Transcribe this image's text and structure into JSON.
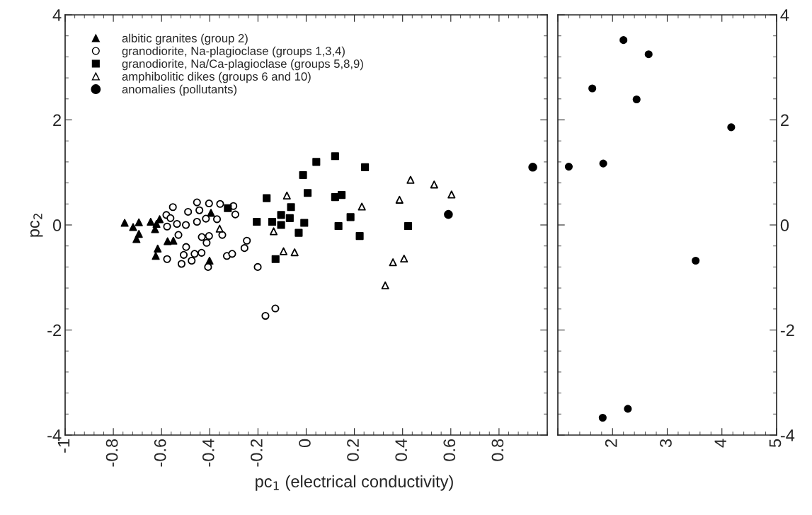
{
  "chart_data": [
    {
      "type": "scatter",
      "xlabel": "pc$_{1}$ (electrical conductivity)",
      "ylabel": "pc$_{2}$",
      "xlim": [
        -1,
        1
      ],
      "xticks": [
        -1,
        -0.8,
        -0.6,
        -0.4,
        -0.2,
        0,
        0.2,
        0.4,
        0.6,
        0.8
      ],
      "ylim": [
        -4,
        4
      ],
      "yticks": [
        -4,
        -2,
        0,
        2,
        4
      ],
      "legend": "top left",
      "series": [
        {
          "name": "albitic granites (group 2)",
          "marker": "triangle",
          "color": "#000000",
          "x": [
            -0.753,
            -0.718,
            -0.694,
            -0.694,
            -0.704,
            -0.645,
            -0.608,
            -0.621,
            -0.627,
            -0.575,
            -0.551,
            -0.616,
            -0.624,
            -0.395,
            -0.401
          ],
          "values": [
            0.04,
            -0.04,
            0.05,
            -0.17,
            -0.27,
            0.06,
            0.11,
            0.02,
            -0.08,
            -0.31,
            -0.3,
            -0.45,
            -0.59,
            0.23,
            -0.68
          ]
        },
        {
          "name": "granodiorite, Na-plagioclase (groups 1,3,4)",
          "marker": "circle",
          "color": "#ffffff",
          "x": [
            -0.553,
            -0.58,
            -0.563,
            -0.577,
            -0.536,
            -0.499,
            -0.49,
            -0.453,
            -0.443,
            -0.403,
            -0.357,
            -0.302,
            -0.294,
            -0.453,
            -0.416,
            -0.37,
            -0.53,
            -0.433,
            -0.403,
            -0.413,
            -0.348,
            -0.498,
            -0.508,
            -0.463,
            -0.434,
            -0.475,
            -0.517,
            -0.577,
            -0.407,
            -0.329,
            -0.307,
            -0.256,
            -0.246,
            -0.201,
            -0.128,
            -0.169
          ],
          "values": [
            0.34,
            0.19,
            0.13,
            -0.03,
            0.02,
            0.0,
            0.25,
            0.43,
            0.28,
            0.41,
            0.4,
            0.36,
            0.2,
            0.06,
            0.12,
            0.11,
            -0.19,
            -0.23,
            -0.21,
            -0.34,
            -0.19,
            -0.42,
            -0.57,
            -0.55,
            -0.53,
            -0.68,
            -0.74,
            -0.65,
            -0.8,
            -0.59,
            -0.55,
            -0.44,
            -0.3,
            -0.8,
            -1.59,
            -1.73
          ]
        },
        {
          "name": "granodiorite, Na/Ca-plagioclase (groups 5,8,9)",
          "marker": "square",
          "color": "#000000",
          "x": [
            0.12,
            0.042,
            0.244,
            -0.013,
            0.006,
            0.12,
            0.147,
            -0.164,
            -0.063,
            -0.104,
            -0.068,
            -0.205,
            -0.141,
            -0.104,
            -0.008,
            -0.031,
            0.184,
            0.134,
            0.222,
            0.423,
            -0.127,
            -0.325
          ],
          "values": [
            1.31,
            1.2,
            1.1,
            0.95,
            0.61,
            0.53,
            0.57,
            0.51,
            0.34,
            0.19,
            0.13,
            0.06,
            0.06,
            0.0,
            0.04,
            -0.15,
            0.15,
            -0.02,
            -0.21,
            -0.02,
            -0.65,
            0.32
          ]
        },
        {
          "name": "amphibolitic dikes (groups 6 and 10)",
          "marker": "triangle",
          "color": "#ffffff",
          "x": [
            -0.08,
            -0.135,
            -0.094,
            -0.048,
            0.231,
            0.387,
            0.433,
            0.36,
            0.406,
            0.328,
            0.531,
            0.603,
            -0.359
          ],
          "values": [
            0.56,
            -0.12,
            -0.5,
            -0.52,
            0.35,
            0.48,
            0.86,
            -0.71,
            -0.64,
            -1.15,
            0.77,
            0.58,
            -0.07
          ]
        },
        {
          "name": "anomalies (pollutants)",
          "marker": "circle",
          "color": "#000000",
          "x": [
            0.94,
            0.59
          ],
          "values": [
            1.1,
            0.2
          ]
        }
      ]
    },
    {
      "type": "scatter",
      "xlim": [
        1,
        5
      ],
      "xticks": [
        {
          "value": 1,
          "label": null
        },
        2,
        3,
        4,
        5
      ],
      "ylim": [
        -4,
        4
      ],
      "yticks": [
        -4,
        -2,
        0,
        2,
        4
      ],
      "series": [
        {
          "marker": "circle",
          "color": "#000000",
          "x": [
            2.2,
            2.66,
            1.63,
            2.44,
            4.17,
            1.2,
            1.83,
            3.52,
            2.28,
            1.82
          ],
          "values": [
            3.52,
            3.25,
            2.6,
            2.39,
            1.86,
            1.11,
            1.17,
            -0.68,
            -3.5,
            -3.67
          ]
        }
      ]
    }
  ]
}
